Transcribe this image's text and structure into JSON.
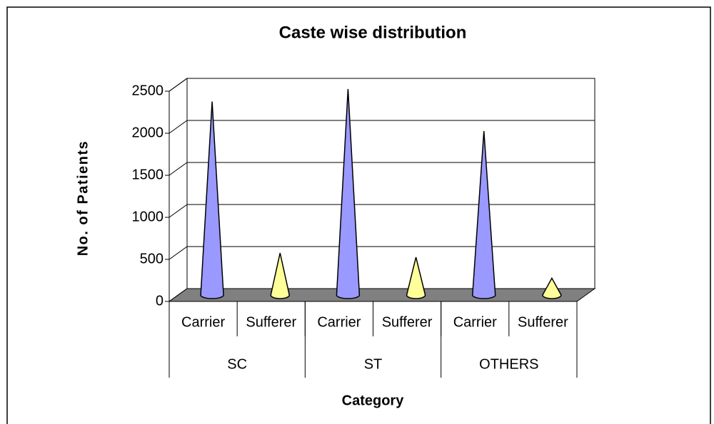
{
  "chart_data": {
    "type": "cone",
    "title": "Caste wise distribution",
    "x_label": "Category",
    "y_label": "No. of Patients",
    "categories": [
      "Carrier",
      "Sufferer",
      "Carrier",
      "Sufferer",
      "Carrier",
      "Sufferer"
    ],
    "groups": [
      "SC",
      "ST",
      "OTHERS"
    ],
    "values": [
      2300,
      500,
      2450,
      450,
      1950,
      200
    ],
    "colors": [
      "#9999ff",
      "#ffff99",
      "#9999ff",
      "#ffff99",
      "#9999ff",
      "#ffff99"
    ],
    "ylim": [
      0,
      2500
    ],
    "yticks": [
      0,
      500,
      1000,
      1500,
      2000,
      2500
    ],
    "grid": true
  }
}
